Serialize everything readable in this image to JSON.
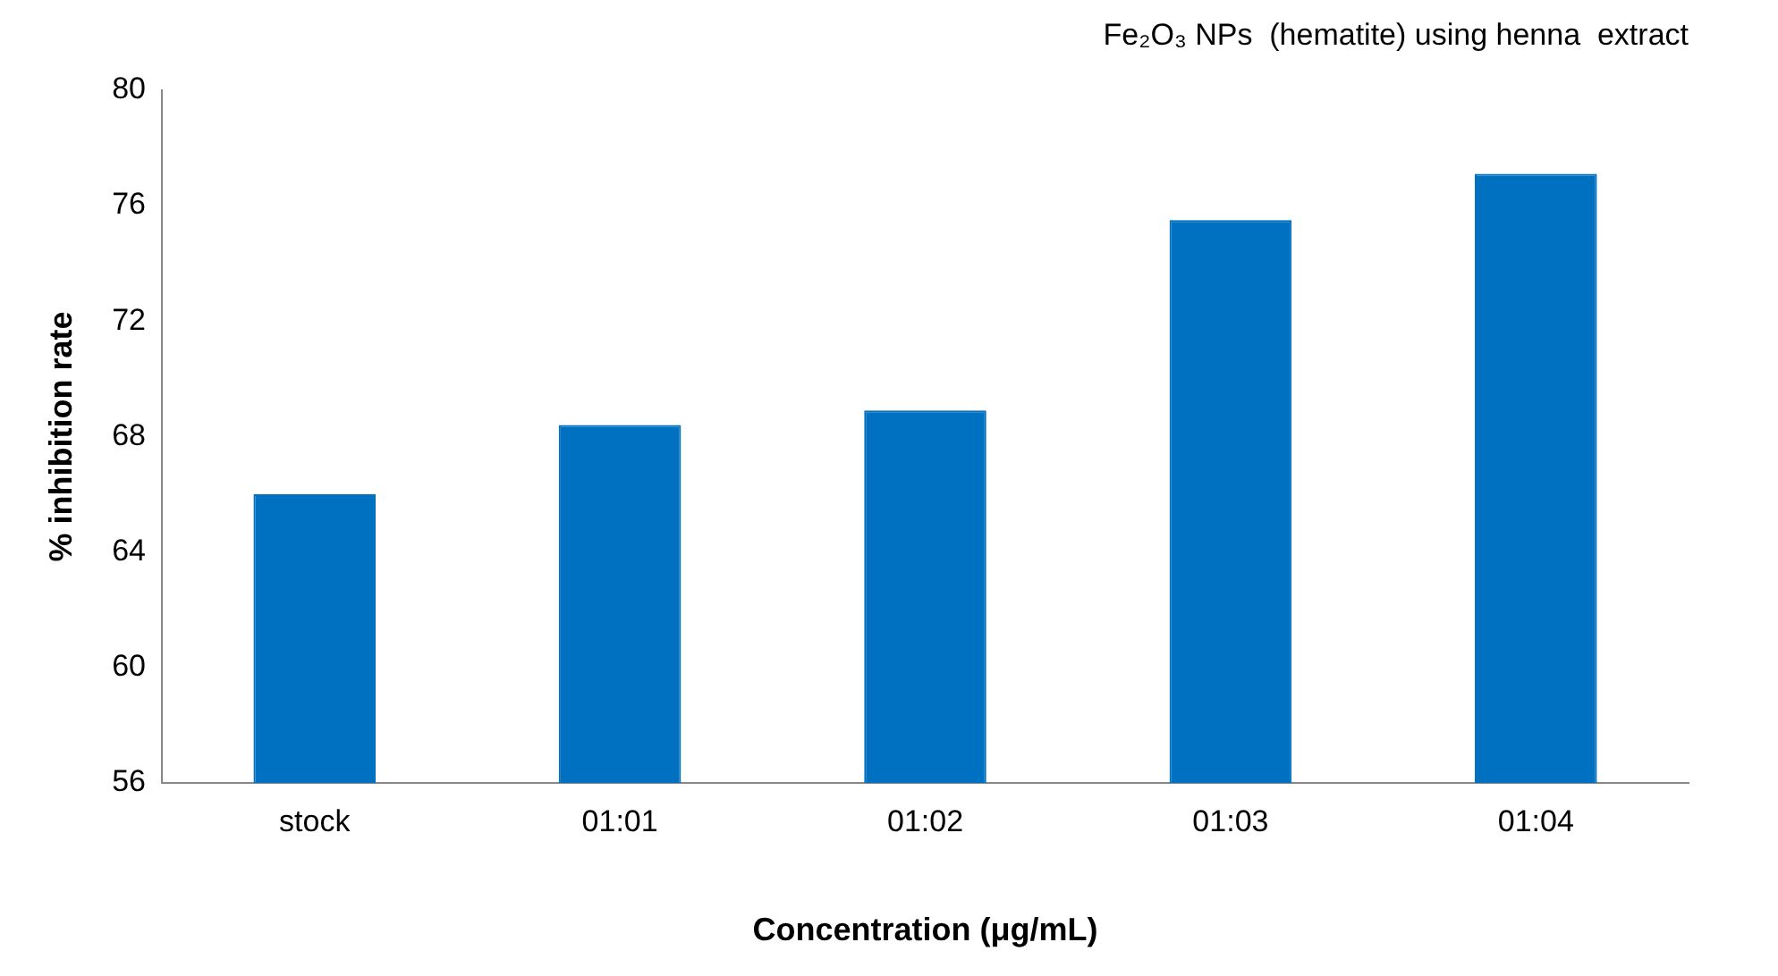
{
  "chart_data": {
    "type": "bar",
    "title": "Fe₂O₃ NPs  (hematite) using henna  extract",
    "xlabel": "Concentration (μg/mL)",
    "ylabel": "% inhibition rate",
    "categories": [
      "stock",
      "01:01",
      "01:02",
      "01:03",
      "01:04"
    ],
    "values": [
      66,
      68.4,
      68.9,
      75.5,
      77.1
    ],
    "color": "#0070c0",
    "ylim": [
      56,
      80
    ],
    "yticks": [
      56,
      60,
      64,
      68,
      72,
      76,
      80
    ],
    "grid": false,
    "legend": false
  }
}
